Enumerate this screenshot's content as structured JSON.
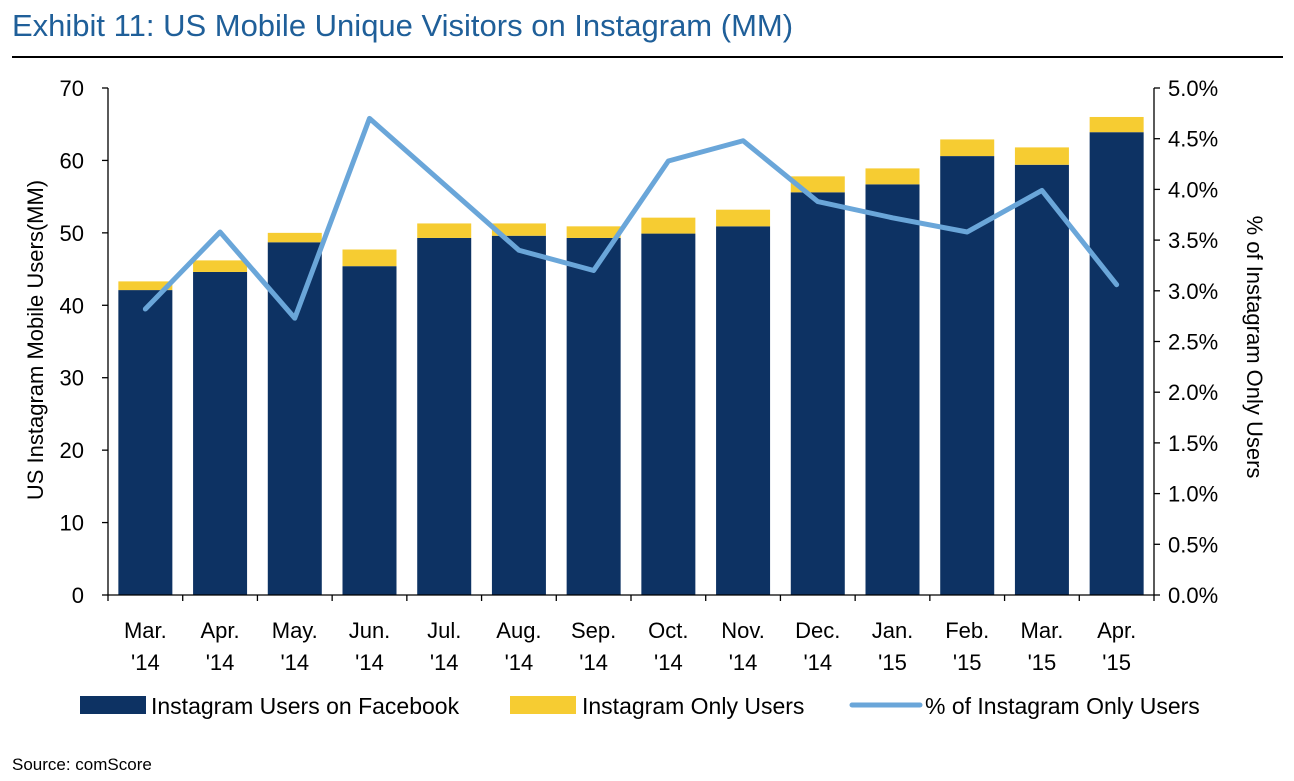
{
  "header": {
    "title": "Exhibit 11: US Mobile Unique Visitors on Instagram (MM)"
  },
  "footer": {
    "source": "Source: comScore"
  },
  "colors": {
    "title": "#1f5f99",
    "facebook_bar": "#0d3263",
    "instagram_only_bar": "#f6cc32",
    "pct_line": "#6aa6d9"
  },
  "chart_data": {
    "type": "bar",
    "stacked": true,
    "categories": [
      [
        "Mar.",
        "'14"
      ],
      [
        "Apr.",
        "'14"
      ],
      [
        "May.",
        "'14"
      ],
      [
        "Jun.",
        "'14"
      ],
      [
        "Jul.",
        "'14"
      ],
      [
        "Aug.",
        "'14"
      ],
      [
        "Sep.",
        "'14"
      ],
      [
        "Oct.",
        "'14"
      ],
      [
        "Nov.",
        "'14"
      ],
      [
        "Dec.",
        "'14"
      ],
      [
        "Jan.",
        "'15"
      ],
      [
        "Feb.",
        "'15"
      ],
      [
        "Mar.",
        "'15"
      ],
      [
        "Apr.",
        "'15"
      ]
    ],
    "series": [
      {
        "name": "Instagram Users on Facebook",
        "type": "bar",
        "axis": "left",
        "color": "#0d3263",
        "values": [
          42.1,
          44.6,
          48.7,
          45.4,
          49.3,
          49.6,
          49.3,
          49.9,
          50.9,
          55.6,
          56.7,
          60.6,
          59.4,
          63.9
        ]
      },
      {
        "name": "Instagram Only Users",
        "type": "bar",
        "axis": "left",
        "color": "#f6cc32",
        "values": [
          1.2,
          1.6,
          1.3,
          2.3,
          2.0,
          1.7,
          1.6,
          2.2,
          2.3,
          2.2,
          2.2,
          2.3,
          2.4,
          2.1
        ]
      },
      {
        "name": "% of Instagram Only Users",
        "type": "line",
        "axis": "right",
        "color": "#6aa6d9",
        "values": [
          2.82,
          3.58,
          2.73,
          4.7,
          4.05,
          3.4,
          3.2,
          4.28,
          4.48,
          3.88,
          3.72,
          3.58,
          3.99,
          3.06
        ]
      }
    ],
    "y_left": {
      "label": "US Instagram Mobile Users(MM)",
      "range": [
        0,
        70
      ],
      "ticks": [
        "0",
        "10",
        "20",
        "30",
        "40",
        "50",
        "60",
        "70"
      ]
    },
    "y_right": {
      "label": "% of Instagram Only Users",
      "range": [
        0,
        5
      ],
      "ticks": [
        "0.0%",
        "0.5%",
        "1.0%",
        "1.5%",
        "2.0%",
        "2.5%",
        "3.0%",
        "3.5%",
        "4.0%",
        "4.5%",
        "5.0%"
      ]
    },
    "grid": false,
    "legend": "bottom"
  }
}
